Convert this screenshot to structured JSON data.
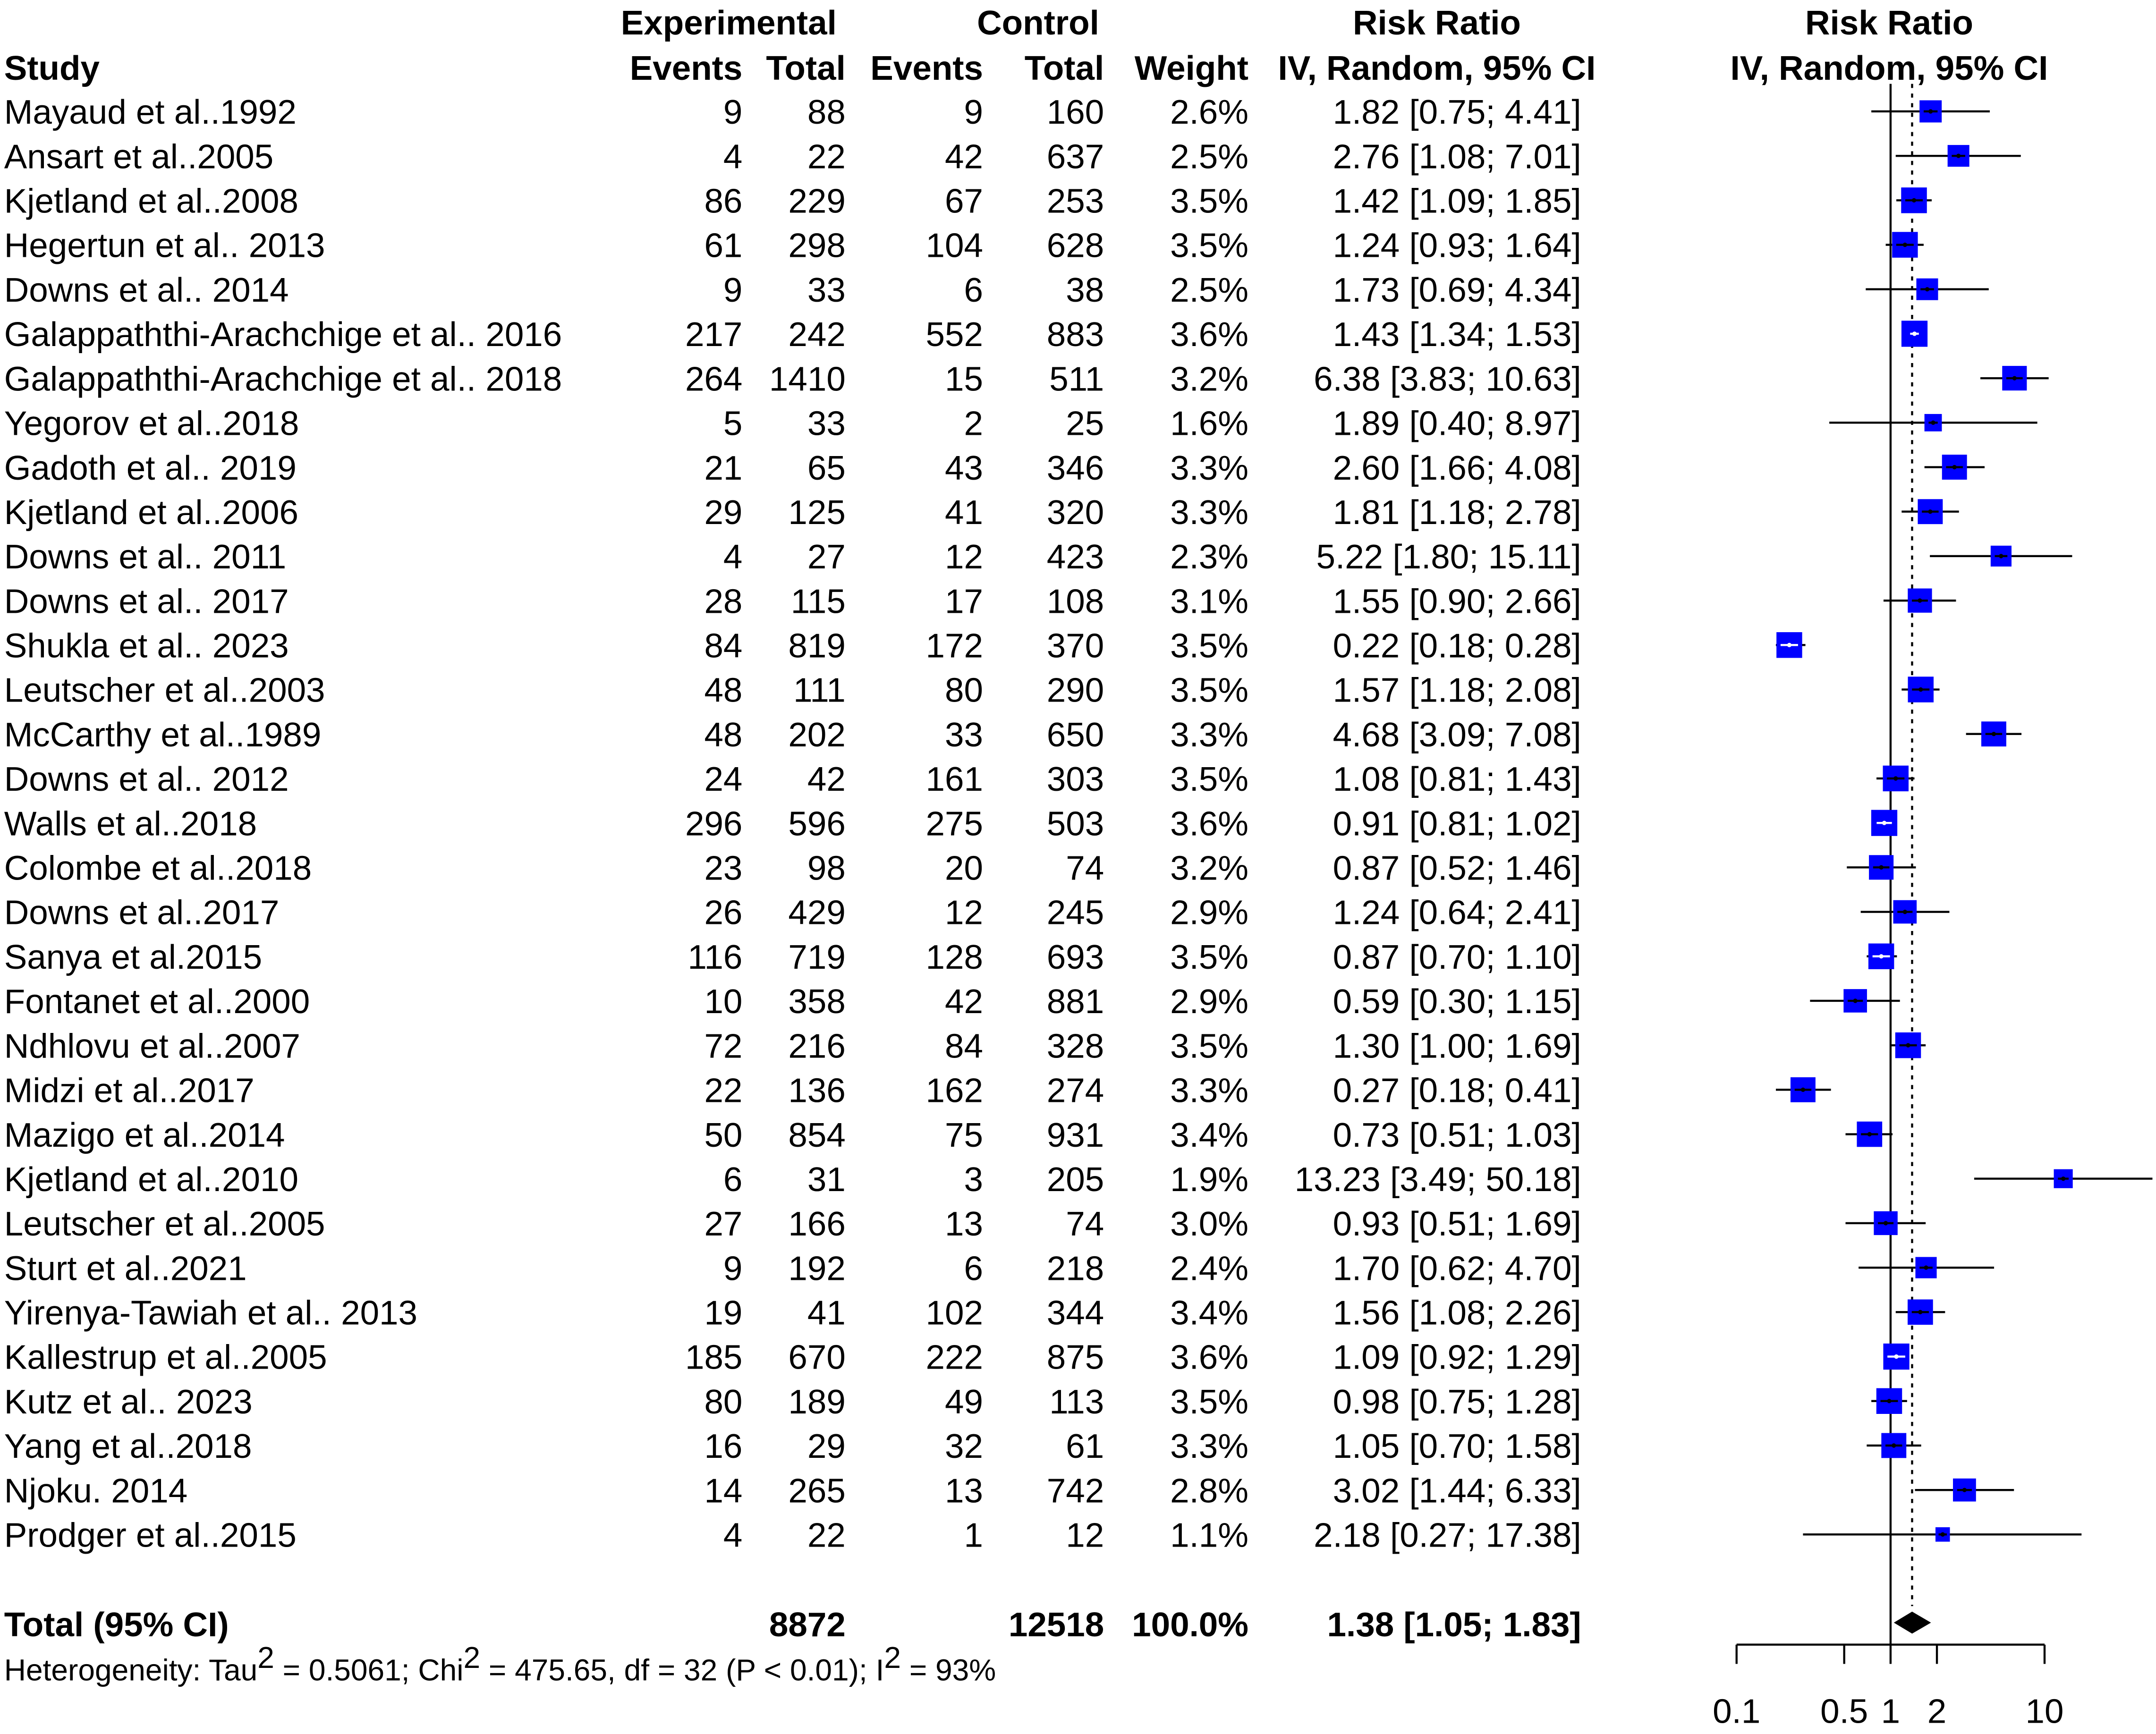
{
  "chart_data": {
    "type": "forest",
    "header": {
      "experimental": "Experimental",
      "control": "Control",
      "risk_ratio": "Risk Ratio",
      "study": "Study",
      "events": "Events",
      "total": "Total",
      "weight": "Weight",
      "method": "IV, Random, 95% CI"
    },
    "studies": [
      {
        "study": "Mayaud et al..1992",
        "e_events": "9",
        "e_total": "88",
        "c_events": "9",
        "c_total": "160",
        "weight": "2.6%",
        "ci_text": "1.82 [0.75;  4.41]",
        "rr": 1.82,
        "lo": 0.75,
        "hi": 4.41,
        "w": 2.6,
        "mark": "#000000"
      },
      {
        "study": "Ansart et al..2005",
        "e_events": "4",
        "e_total": "22",
        "c_events": "42",
        "c_total": "637",
        "weight": "2.5%",
        "ci_text": "2.76 [1.08;  7.01]",
        "rr": 2.76,
        "lo": 1.08,
        "hi": 7.01,
        "w": 2.5,
        "mark": "#000000"
      },
      {
        "study": "Kjetland et al..2008",
        "e_events": "86",
        "e_total": "229",
        "c_events": "67",
        "c_total": "253",
        "weight": "3.5%",
        "ci_text": "1.42 [1.09;  1.85]",
        "rr": 1.42,
        "lo": 1.09,
        "hi": 1.85,
        "w": 3.5,
        "mark": "#000000"
      },
      {
        "study": "Hegertun et al.. 2013",
        "e_events": "61",
        "e_total": "298",
        "c_events": "104",
        "c_total": "628",
        "weight": "3.5%",
        "ci_text": "1.24 [0.93;  1.64]",
        "rr": 1.24,
        "lo": 0.93,
        "hi": 1.64,
        "w": 3.5,
        "mark": "#000000"
      },
      {
        "study": "Downs et al.. 2014",
        "e_events": "9",
        "e_total": "33",
        "c_events": "6",
        "c_total": "38",
        "weight": "2.5%",
        "ci_text": "1.73 [0.69;  4.34]",
        "rr": 1.73,
        "lo": 0.69,
        "hi": 4.34,
        "w": 2.5,
        "mark": "#000000"
      },
      {
        "study": "Galappaththi-Arachchige et al.. 2016",
        "e_events": "217",
        "e_total": "242",
        "c_events": "552",
        "c_total": "883",
        "weight": "3.6%",
        "ci_text": "1.43 [1.34;  1.53]",
        "rr": 1.43,
        "lo": 1.34,
        "hi": 1.53,
        "w": 3.6,
        "mark": "#ffffff"
      },
      {
        "study": "Galappaththi-Arachchige et al.. 2018",
        "e_events": "264",
        "e_total": "1410",
        "c_events": "15",
        "c_total": "511",
        "weight": "3.2%",
        "ci_text": "6.38 [3.83; 10.63]",
        "rr": 6.38,
        "lo": 3.83,
        "hi": 10.63,
        "w": 3.2,
        "mark": "#000000"
      },
      {
        "study": "Yegorov et al..2018",
        "e_events": "5",
        "e_total": "33",
        "c_events": "2",
        "c_total": "25",
        "weight": "1.6%",
        "ci_text": "1.89 [0.40;  8.97]",
        "rr": 1.89,
        "lo": 0.4,
        "hi": 8.97,
        "w": 1.6,
        "mark": "#000000"
      },
      {
        "study": "Gadoth et al.. 2019",
        "e_events": "21",
        "e_total": "65",
        "c_events": "43",
        "c_total": "346",
        "weight": "3.3%",
        "ci_text": "2.60 [1.66;  4.08]",
        "rr": 2.6,
        "lo": 1.66,
        "hi": 4.08,
        "w": 3.3,
        "mark": "#000000"
      },
      {
        "study": "Kjetland et al..2006",
        "e_events": "29",
        "e_total": "125",
        "c_events": "41",
        "c_total": "320",
        "weight": "3.3%",
        "ci_text": "1.81 [1.18;  2.78]",
        "rr": 1.81,
        "lo": 1.18,
        "hi": 2.78,
        "w": 3.3,
        "mark": "#000000"
      },
      {
        "study": "Downs et al.. 2011",
        "e_events": "4",
        "e_total": "27",
        "c_events": "12",
        "c_total": "423",
        "weight": "2.3%",
        "ci_text": "5.22 [1.80; 15.11]",
        "rr": 5.22,
        "lo": 1.8,
        "hi": 15.11,
        "w": 2.3,
        "mark": "#000000"
      },
      {
        "study": "Downs et al.. 2017",
        "e_events": "28",
        "e_total": "115",
        "c_events": "17",
        "c_total": "108",
        "weight": "3.1%",
        "ci_text": "1.55 [0.90;  2.66]",
        "rr": 1.55,
        "lo": 0.9,
        "hi": 2.66,
        "w": 3.1,
        "mark": "#000000"
      },
      {
        "study": "Shukla et al.. 2023",
        "e_events": "84",
        "e_total": "819",
        "c_events": "172",
        "c_total": "370",
        "weight": "3.5%",
        "ci_text": "0.22 [0.18;  0.28]",
        "rr": 0.22,
        "lo": 0.18,
        "hi": 0.28,
        "w": 3.5,
        "mark": "#ffffff"
      },
      {
        "study": "Leutscher et al..2003",
        "e_events": "48",
        "e_total": "111",
        "c_events": "80",
        "c_total": "290",
        "weight": "3.5%",
        "ci_text": "1.57 [1.18;  2.08]",
        "rr": 1.57,
        "lo": 1.18,
        "hi": 2.08,
        "w": 3.5,
        "mark": "#000000"
      },
      {
        "study": "McCarthy et al..1989",
        "e_events": "48",
        "e_total": "202",
        "c_events": "33",
        "c_total": "650",
        "weight": "3.3%",
        "ci_text": "4.68 [3.09;  7.08]",
        "rr": 4.68,
        "lo": 3.09,
        "hi": 7.08,
        "w": 3.3,
        "mark": "#000000"
      },
      {
        "study": "Downs et al.. 2012",
        "e_events": "24",
        "e_total": "42",
        "c_events": "161",
        "c_total": "303",
        "weight": "3.5%",
        "ci_text": "1.08 [0.81;  1.43]",
        "rr": 1.08,
        "lo": 0.81,
        "hi": 1.43,
        "w": 3.5,
        "mark": "#000000"
      },
      {
        "study": "Walls et al..2018",
        "e_events": "296",
        "e_total": "596",
        "c_events": "275",
        "c_total": "503",
        "weight": "3.6%",
        "ci_text": "0.91 [0.81;  1.02]",
        "rr": 0.91,
        "lo": 0.81,
        "hi": 1.02,
        "w": 3.6,
        "mark": "#ffffff"
      },
      {
        "study": "Colombe et al..2018",
        "e_events": "23",
        "e_total": "98",
        "c_events": "20",
        "c_total": "74",
        "weight": "3.2%",
        "ci_text": "0.87 [0.52;  1.46]",
        "rr": 0.87,
        "lo": 0.52,
        "hi": 1.46,
        "w": 3.2,
        "mark": "#000000"
      },
      {
        "study": " Downs et al..2017",
        "e_events": "26",
        "e_total": "429",
        "c_events": "12",
        "c_total": "245",
        "weight": "2.9%",
        "ci_text": "1.24 [0.64;  2.41]",
        "rr": 1.24,
        "lo": 0.64,
        "hi": 2.41,
        "w": 2.9,
        "mark": "#000000"
      },
      {
        "study": "Sanya et al.2015",
        "e_events": "116",
        "e_total": "719",
        "c_events": "128",
        "c_total": "693",
        "weight": "3.5%",
        "ci_text": "0.87 [0.70;  1.10]",
        "rr": 0.87,
        "lo": 0.7,
        "hi": 1.1,
        "w": 3.5,
        "mark": "#ffffff"
      },
      {
        "study": "Fontanet et al..2000",
        "e_events": "10",
        "e_total": "358",
        "c_events": "42",
        "c_total": "881",
        "weight": "2.9%",
        "ci_text": "0.59 [0.30;  1.15]",
        "rr": 0.59,
        "lo": 0.3,
        "hi": 1.15,
        "w": 2.9,
        "mark": "#000000"
      },
      {
        "study": "Ndhlovu et al..2007",
        "e_events": "72",
        "e_total": "216",
        "c_events": "84",
        "c_total": "328",
        "weight": "3.5%",
        "ci_text": "1.30 [1.00;  1.69]",
        "rr": 1.3,
        "lo": 1.0,
        "hi": 1.69,
        "w": 3.5,
        "mark": "#000000"
      },
      {
        "study": "Midzi et al..2017",
        "e_events": "22",
        "e_total": "136",
        "c_events": "162",
        "c_total": "274",
        "weight": "3.3%",
        "ci_text": "0.27 [0.18;  0.41]",
        "rr": 0.27,
        "lo": 0.18,
        "hi": 0.41,
        "w": 3.3,
        "mark": "#000000"
      },
      {
        "study": "Mazigo et al..2014",
        "e_events": "50",
        "e_total": "854",
        "c_events": "75",
        "c_total": "931",
        "weight": "3.4%",
        "ci_text": "0.73 [0.51;  1.03]",
        "rr": 0.73,
        "lo": 0.51,
        "hi": 1.03,
        "w": 3.4,
        "mark": "#000000"
      },
      {
        "study": "Kjetland et al..2010",
        "e_events": "6",
        "e_total": "31",
        "c_events": "3",
        "c_total": "205",
        "weight": "1.9%",
        "ci_text": "13.23 [3.49; 50.18]",
        "rr": 13.23,
        "lo": 3.49,
        "hi": 50.18,
        "w": 1.9,
        "mark": "#000000"
      },
      {
        "study": "Leutscher et al..2005",
        "e_events": "27",
        "e_total": "166",
        "c_events": "13",
        "c_total": "74",
        "weight": "3.0%",
        "ci_text": "0.93 [0.51;  1.69]",
        "rr": 0.93,
        "lo": 0.51,
        "hi": 1.69,
        "w": 3.0,
        "mark": "#000000"
      },
      {
        "study": "Sturt et al..2021",
        "e_events": "9",
        "e_total": "192",
        "c_events": "6",
        "c_total": "218",
        "weight": "2.4%",
        "ci_text": "1.70 [0.62;  4.70]",
        "rr": 1.7,
        "lo": 0.62,
        "hi": 4.7,
        "w": 2.4,
        "mark": "#000000"
      },
      {
        "study": "Yirenya-Tawiah et al.. 2013",
        "e_events": "19",
        "e_total": "41",
        "c_events": "102",
        "c_total": "344",
        "weight": "3.4%",
        "ci_text": "1.56 [1.08;  2.26]",
        "rr": 1.56,
        "lo": 1.08,
        "hi": 2.26,
        "w": 3.4,
        "mark": "#000000"
      },
      {
        "study": "Kallestrup et al..2005",
        "e_events": "185",
        "e_total": "670",
        "c_events": "222",
        "c_total": "875",
        "weight": "3.6%",
        "ci_text": "1.09 [0.92;  1.29]",
        "rr": 1.09,
        "lo": 0.92,
        "hi": 1.29,
        "w": 3.6,
        "mark": "#ffffff"
      },
      {
        "study": "Kutz et al.. 2023",
        "e_events": "80",
        "e_total": "189",
        "c_events": "49",
        "c_total": "113",
        "weight": "3.5%",
        "ci_text": "0.98 [0.75;  1.28]",
        "rr": 0.98,
        "lo": 0.75,
        "hi": 1.28,
        "w": 3.5,
        "mark": "#000000"
      },
      {
        "study": "Yang et al..2018",
        "e_events": "16",
        "e_total": "29",
        "c_events": "32",
        "c_total": "61",
        "weight": "3.3%",
        "ci_text": "1.05 [0.70;  1.58]",
        "rr": 1.05,
        "lo": 0.7,
        "hi": 1.58,
        "w": 3.3,
        "mark": "#000000"
      },
      {
        "study": "Njoku. 2014",
        "e_events": "14",
        "e_total": "265",
        "c_events": "13",
        "c_total": "742",
        "weight": "2.8%",
        "ci_text": "3.02 [1.44;  6.33]",
        "rr": 3.02,
        "lo": 1.44,
        "hi": 6.33,
        "w": 2.8,
        "mark": "#000000"
      },
      {
        "study": "Prodger et al..2015",
        "e_events": "4",
        "e_total": "22",
        "c_events": "1",
        "c_total": "12",
        "weight": "1.1%",
        "ci_text": "2.18 [0.27; 17.38]",
        "rr": 2.18,
        "lo": 0.27,
        "hi": 17.38,
        "w": 1.1,
        "mark": "#000000"
      }
    ],
    "total": {
      "label": "Total (95% CI)",
      "e_total": "8872",
      "c_total": "12518",
      "weight": "100.0%",
      "ci_text": "1.38 [1.05;  1.83]",
      "rr": 1.38,
      "lo": 1.05,
      "hi": 1.83
    },
    "heterogeneity": {
      "prefix": "Heterogeneity: Tau",
      "tau2": " = 0.5061; Chi",
      "chi2": " = 475.65, df = 32 (P < 0.01); I",
      "i2": " = 93%",
      "sup": "2"
    },
    "x_axis": {
      "scale": "log",
      "xlim": [
        0.1,
        10
      ],
      "ticks": [
        0.1,
        0.5,
        1,
        2,
        10
      ],
      "tick_labels": [
        "0.1",
        "0.5",
        "1",
        "2",
        "10"
      ],
      "reference_line": 1,
      "pooled_line": 1.38
    },
    "colors": {
      "square_fill": "#0000ff",
      "line": "#000000",
      "diamond": "#000000",
      "background": "#ffffff"
    }
  }
}
